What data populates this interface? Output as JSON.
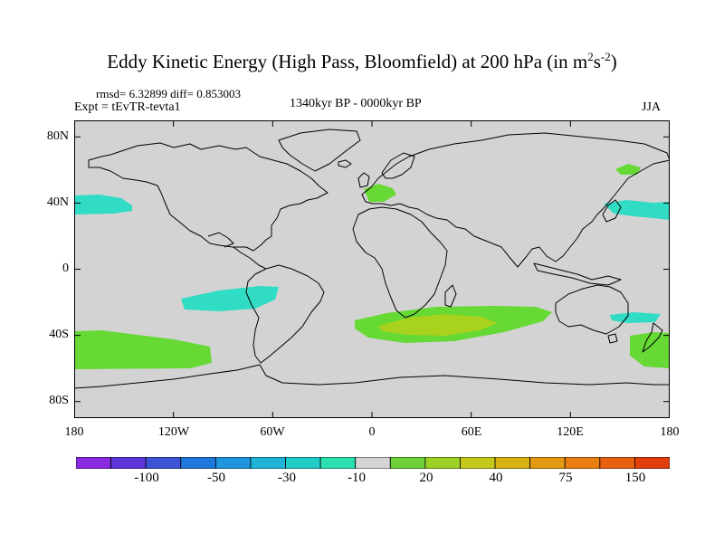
{
  "title": {
    "main": "Eddy Kinetic Energy (High Pass, Bloomfield) at 200 hPa (in m",
    "sup1": "2",
    "mid": "s",
    "sup2": "-2",
    "end": ")"
  },
  "stats": "rmsd= 6.32899 diff= 0.853003",
  "experiment": "Expt = tEvTR-tevta1",
  "period": "1340kyr BP - 0000kyr BP",
  "season": "JJA",
  "axes": {
    "y_ticks": [
      "80N",
      "40N",
      "0",
      "40S",
      "80S"
    ],
    "x_ticks": [
      "180",
      "120W",
      "60W",
      "0",
      "60E",
      "120E",
      "180"
    ]
  },
  "colorbar": {
    "colors": [
      "#8a2be2",
      "#5e35d9",
      "#3c55d8",
      "#1f78dc",
      "#1e95dc",
      "#1fb3d6",
      "#22ccc8",
      "#2be0b0",
      "#d3d3d3",
      "#6fd13a",
      "#9bd025",
      "#c3c81a",
      "#d9b314",
      "#e39a12",
      "#e97e10",
      "#e6600f",
      "#e1400d"
    ],
    "labels": [
      "-100",
      "-50",
      "-30",
      "-10",
      "20",
      "40",
      "75",
      "150"
    ]
  },
  "colors": {
    "land_ocean": "#d3d3d3",
    "cyan": "#30dcc4",
    "green": "#66d934",
    "yellowgreen": "#a8d21d"
  }
}
